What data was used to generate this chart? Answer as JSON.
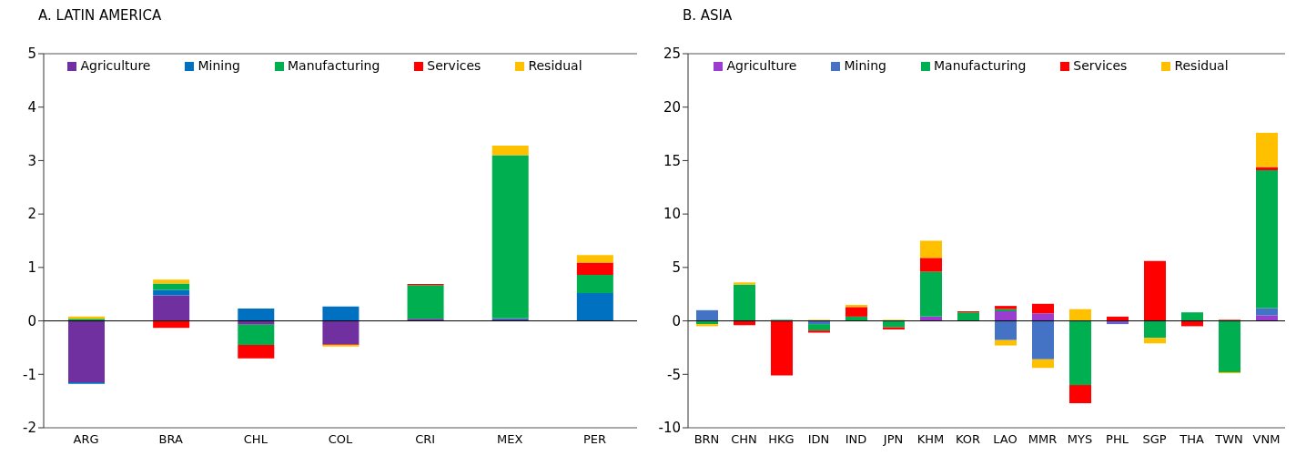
{
  "chart_data": [
    {
      "type": "bar",
      "title": "A. LATIN AMERICA",
      "stacked": true,
      "legend": "top",
      "categories": [
        "ARG",
        "BRA",
        "CHL",
        "COL",
        "CRI",
        "MEX",
        "PER"
      ],
      "ylim": [
        -2,
        5
      ],
      "yticks": [
        -2,
        -1,
        0,
        1,
        2,
        3,
        4,
        5
      ],
      "ref_lines": [
        {
          "axis": "y",
          "value": 0,
          "color": "#000000"
        }
      ],
      "series": [
        {
          "name": "Agriculture",
          "color": "#7030a0",
          "values": [
            -1.15,
            0.48,
            -0.07,
            -0.44,
            0.04,
            0.03,
            0
          ]
        },
        {
          "name": "Mining",
          "color": "#0070c0",
          "values": [
            -0.03,
            0.1,
            0.23,
            0.27,
            0,
            0.02,
            0.52
          ]
        },
        {
          "name": "Manufacturing",
          "color": "#00b050",
          "values": [
            0.04,
            0.12,
            -0.38,
            0,
            0.63,
            3.05,
            0.34
          ]
        },
        {
          "name": "Services",
          "color": "#ff0000",
          "values": [
            0,
            -0.13,
            -0.25,
            -0.01,
            0.02,
            0,
            0.23
          ]
        },
        {
          "name": "Residual",
          "color": "#ffc000",
          "values": [
            0.04,
            0.07,
            0,
            -0.03,
            0,
            0.18,
            0.14
          ]
        }
      ]
    },
    {
      "type": "bar",
      "title": "B. ASIA",
      "stacked": true,
      "legend": "top",
      "categories": [
        "BRN",
        "CHN",
        "HKG",
        "IDN",
        "IND",
        "JPN",
        "KHM",
        "KOR",
        "LAO",
        "MMR",
        "MYS",
        "PHL",
        "SGP",
        "THA",
        "TWN",
        "VNM"
      ],
      "ylim": [
        -10,
        25
      ],
      "yticks": [
        -10,
        -5,
        0,
        5,
        10,
        15,
        20,
        25
      ],
      "ref_lines": [
        {
          "axis": "y",
          "value": 0,
          "color": "#000000"
        }
      ],
      "series": [
        {
          "name": "Agriculture",
          "color": "#9b3ecf",
          "values": [
            0,
            0,
            0,
            0,
            0,
            0,
            0.4,
            0,
            0.9,
            0.7,
            0,
            -0.2,
            0,
            0,
            0,
            0.5
          ]
        },
        {
          "name": "Mining",
          "color": "#4472c4",
          "values": [
            1,
            0,
            0,
            -0.3,
            0,
            0,
            0,
            0,
            -1.8,
            -3.6,
            0,
            -0.1,
            0,
            0,
            0,
            0.7
          ]
        },
        {
          "name": "Manufacturing",
          "color": "#00b050",
          "values": [
            -0.3,
            3.4,
            0.1,
            -0.6,
            0.4,
            -0.6,
            4.2,
            0.8,
            0.2,
            0,
            -6,
            0,
            -1.6,
            0.8,
            -4.8,
            12.9
          ]
        },
        {
          "name": "Services",
          "color": "#ff0000",
          "values": [
            0,
            -0.4,
            -5.1,
            -0.2,
            0.9,
            -0.2,
            1.3,
            0.1,
            0.3,
            0.9,
            -1.7,
            0.4,
            5.6,
            -0.5,
            0.1,
            0.3
          ]
        },
        {
          "name": "Residual",
          "color": "#ffc000",
          "values": [
            -0.2,
            0.2,
            0,
            0.1,
            0.2,
            0.1,
            1.6,
            0,
            -0.5,
            -0.8,
            1.1,
            0,
            -0.5,
            0,
            -0.1,
            3.2
          ]
        }
      ]
    }
  ]
}
